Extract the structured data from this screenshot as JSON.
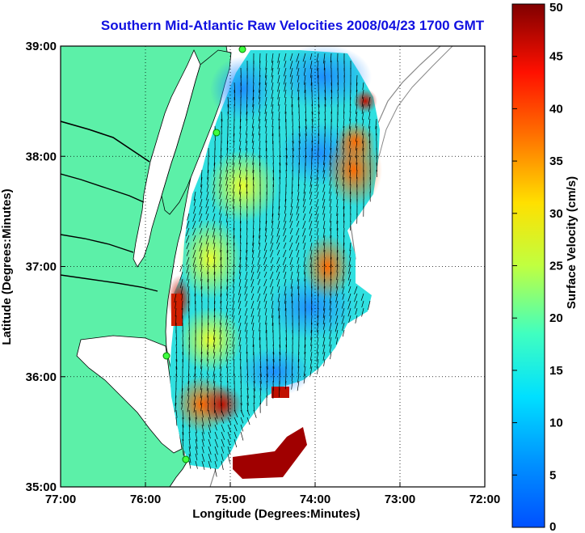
{
  "title": "Southern Mid-Atlantic Raw Velocities 2008/04/23 1700 GMT",
  "x_axis": {
    "label": "Longitude (Degrees:Minutes)",
    "ticks": [
      {
        "value": -77,
        "label": "77:00"
      },
      {
        "value": -76,
        "label": "76:00"
      },
      {
        "value": -75,
        "label": "75:00"
      },
      {
        "value": -74,
        "label": "74:00"
      },
      {
        "value": -73,
        "label": "73:00"
      },
      {
        "value": -72,
        "label": "72:00"
      }
    ],
    "range": [
      -77,
      -72
    ]
  },
  "y_axis": {
    "label": "Latitude (Degrees:Minutes)",
    "ticks": [
      {
        "value": 39,
        "label": "39:00"
      },
      {
        "value": 38,
        "label": "38:00"
      },
      {
        "value": 37,
        "label": "37:00"
      },
      {
        "value": 36,
        "label": "36:00"
      },
      {
        "value": 35,
        "label": "35:00"
      }
    ],
    "range": [
      35,
      39
    ]
  },
  "colorbar": {
    "label": "Surface Velocity (cm/s)",
    "range": [
      0,
      50
    ],
    "ticks": [
      {
        "value": 50,
        "label": "50"
      },
      {
        "value": 45,
        "label": "45"
      },
      {
        "value": 40,
        "label": "40"
      },
      {
        "value": 35,
        "label": "35"
      },
      {
        "value": 30,
        "label": "30"
      },
      {
        "value": 25,
        "label": "25"
      },
      {
        "value": 20,
        "label": "20"
      },
      {
        "value": 15,
        "label": "15"
      },
      {
        "value": 10,
        "label": "10"
      },
      {
        "value": 5,
        "label": "5"
      },
      {
        "value": 0,
        "label": "0"
      }
    ]
  },
  "colors": {
    "title": "#1010e0",
    "land": "#5cf0a8",
    "water": "#ffffff"
  },
  "grid": "dotted"
}
